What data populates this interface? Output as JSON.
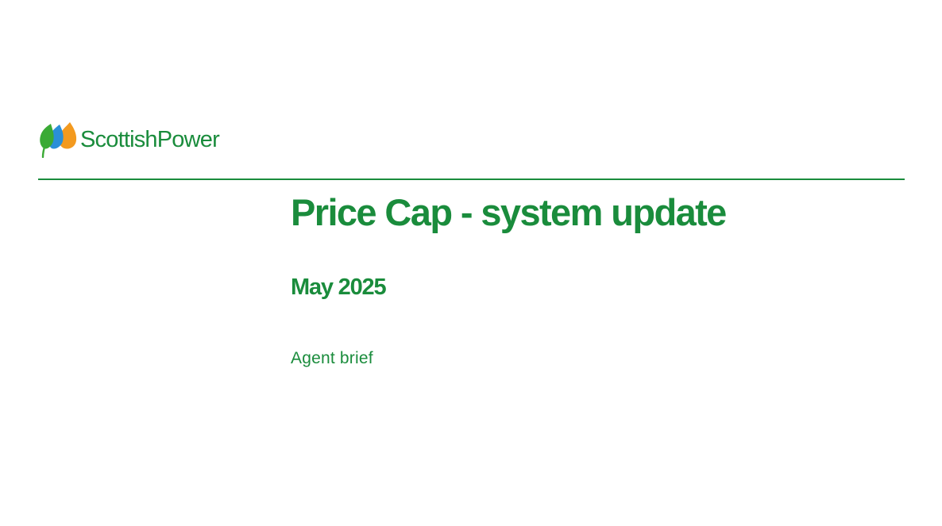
{
  "brand": {
    "name": "ScottishPower",
    "icon": "flame-leaf-logo-icon",
    "colors": {
      "green": "#1a8c3c",
      "leaf_green": "#3aaa35",
      "blue": "#2a8fd8",
      "orange": "#f39a1f"
    }
  },
  "document": {
    "title": "Price Cap - system update",
    "date": "May 2025",
    "audience": "Agent brief"
  },
  "theme": {
    "text_color": "#1a8c3c",
    "rule_color": "#1a8c3c"
  }
}
